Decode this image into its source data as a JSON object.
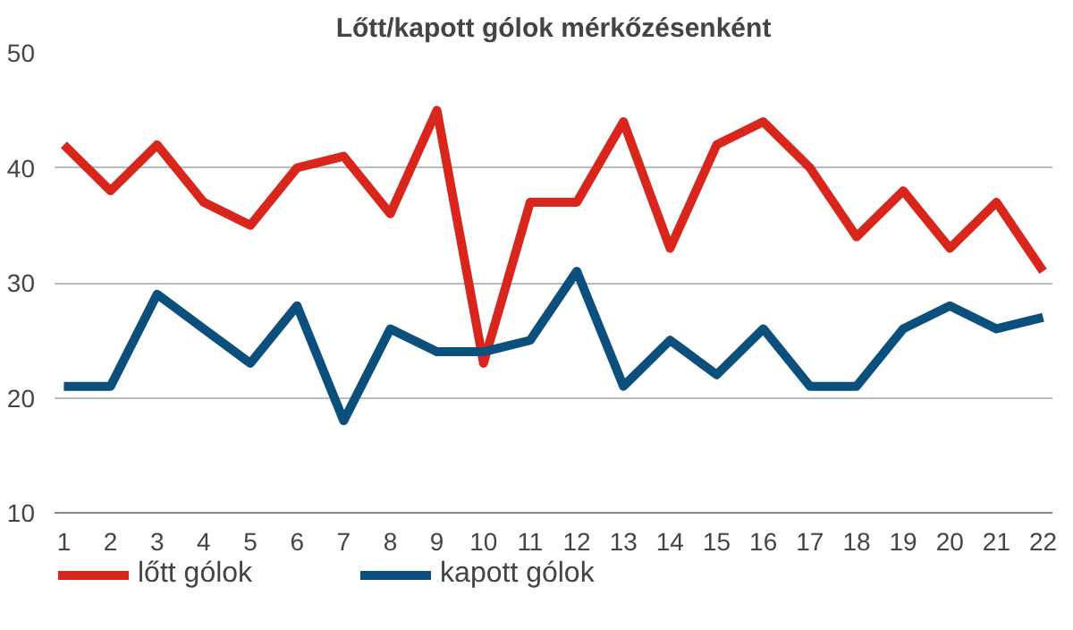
{
  "chart_data": {
    "type": "line",
    "title": "Lőtt/kapott gólok mérkőzésenként",
    "x": [
      1,
      2,
      3,
      4,
      5,
      6,
      7,
      8,
      9,
      10,
      11,
      12,
      13,
      14,
      15,
      16,
      17,
      18,
      19,
      20,
      21,
      22
    ],
    "series": [
      {
        "name": "lőtt gólok",
        "color": "#d9261c",
        "values": [
          42,
          38,
          42,
          37,
          35,
          40,
          41,
          36,
          45,
          23,
          37,
          37,
          44,
          33,
          42,
          44,
          40,
          34,
          38,
          33,
          37,
          31
        ]
      },
      {
        "name": "kapott gólok",
        "color": "#0b4f7c",
        "values": [
          21,
          21,
          29,
          26,
          23,
          28,
          18,
          26,
          24,
          24,
          25,
          31,
          21,
          25,
          22,
          26,
          21,
          21,
          26,
          28,
          26,
          27
        ]
      }
    ],
    "xlim": [
      0.8,
      22.2
    ],
    "xticks": [
      1,
      2,
      3,
      4,
      5,
      6,
      7,
      8,
      9,
      10,
      11,
      12,
      13,
      14,
      15,
      16,
      17,
      18,
      19,
      20,
      21,
      22
    ],
    "ylim": [
      10,
      50
    ],
    "yticks": [
      10,
      20,
      30,
      40,
      50
    ],
    "grid": "y",
    "legend": "bottom",
    "marker": "none",
    "line_style": "solid"
  }
}
